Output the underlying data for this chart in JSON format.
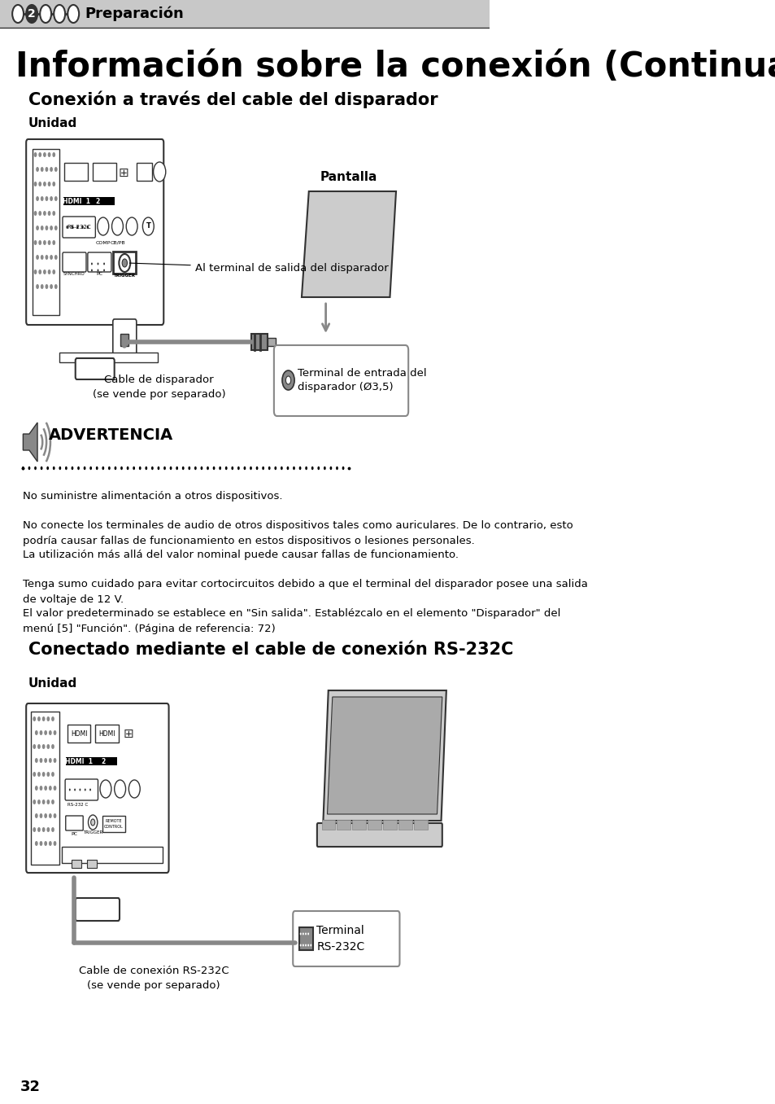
{
  "bg_color": "#ffffff",
  "header_bg": "#c8c8c8",
  "header_text": "Preparación",
  "main_title": "Información sobre la conexión (Continuación)",
  "section1_title": "Conexión a través del cable del disparador",
  "section1_unit": "Unidad",
  "label_pantalla": "Pantalla",
  "label_terminal_salida": "Al terminal de salida del disparador",
  "label_cable_disparador": "Cable de disparador\n(se vende por separado)",
  "label_terminal_entrada": "Terminal de entrada del\ndisparador (Ø3,5)",
  "warning_title": "ADVERTENCIA",
  "warning_lines": [
    "No suministre alimentación a otros dispositivos.",
    "No conecte los terminales de audio de otros dispositivos tales como auriculares. De lo contrario, esto\npodría causar fallas de funcionamiento en estos dispositivos o lesiones personales.",
    "La utilización más allá del valor nominal puede causar fallas de funcionamiento.",
    "Tenga sumo cuidado para evitar cortocircuitos debido a que el terminal del disparador posee una salida\nde voltaje de 12 V.",
    "El valor predeterminado se establece en \"Sin salida\". Establézcalo en el elemento \"Disparador\" del\nmenú [5] \"Función\". (Página de referencia: 72)"
  ],
  "section2_title": "Conectado mediante el cable de conexión RS-232C",
  "section2_unit": "Unidad",
  "label_cable_rs232": "Cable de conexión RS-232C\n(se vende por separado)",
  "label_terminal_rs232": "Terminal\nRS-232C",
  "page_number": "32",
  "gray_dark": "#333333",
  "gray_mid": "#888888",
  "gray_light": "#cccccc",
  "gray_panel": "#aaaaaa",
  "gray_grille": "#666666"
}
